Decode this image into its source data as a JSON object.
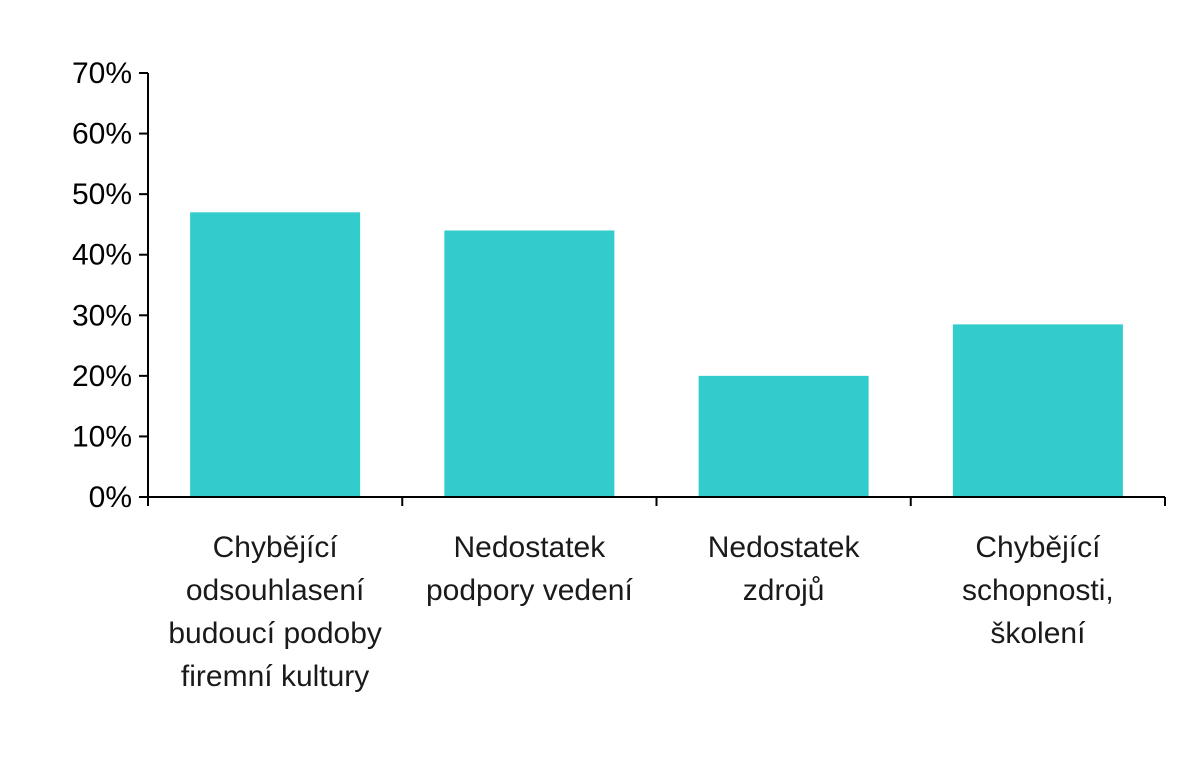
{
  "chart_data": {
    "type": "bar",
    "title": "",
    "xlabel": "",
    "ylabel": "",
    "categories": [
      "Chybějící odsouhlasení budoucí podoby firemní kultury",
      "Nedostatek podpory vedení",
      "Nedostatek zdrojů",
      "Chybějící schopnosti, školení"
    ],
    "category_lines": [
      [
        "Chybějící",
        "odsouhlasení",
        "budoucí podoby",
        "firemní kultury"
      ],
      [
        "Nedostatek",
        "podpory vedení"
      ],
      [
        "Nedostatek",
        "zdrojů"
      ],
      [
        "Chybějící",
        "schopnosti,",
        "školení"
      ]
    ],
    "values": [
      47,
      44,
      20,
      28.5
    ],
    "ylim": [
      0,
      70
    ],
    "y_ticks": [
      0,
      10,
      20,
      30,
      40,
      50,
      60,
      70
    ],
    "y_tick_labels": [
      "0%",
      "10%",
      "20%",
      "30%",
      "40%",
      "50%",
      "60%",
      "70%"
    ],
    "bar_color": "#33CCCC",
    "axis_color": "#000000",
    "grid": false,
    "legend": "none"
  }
}
